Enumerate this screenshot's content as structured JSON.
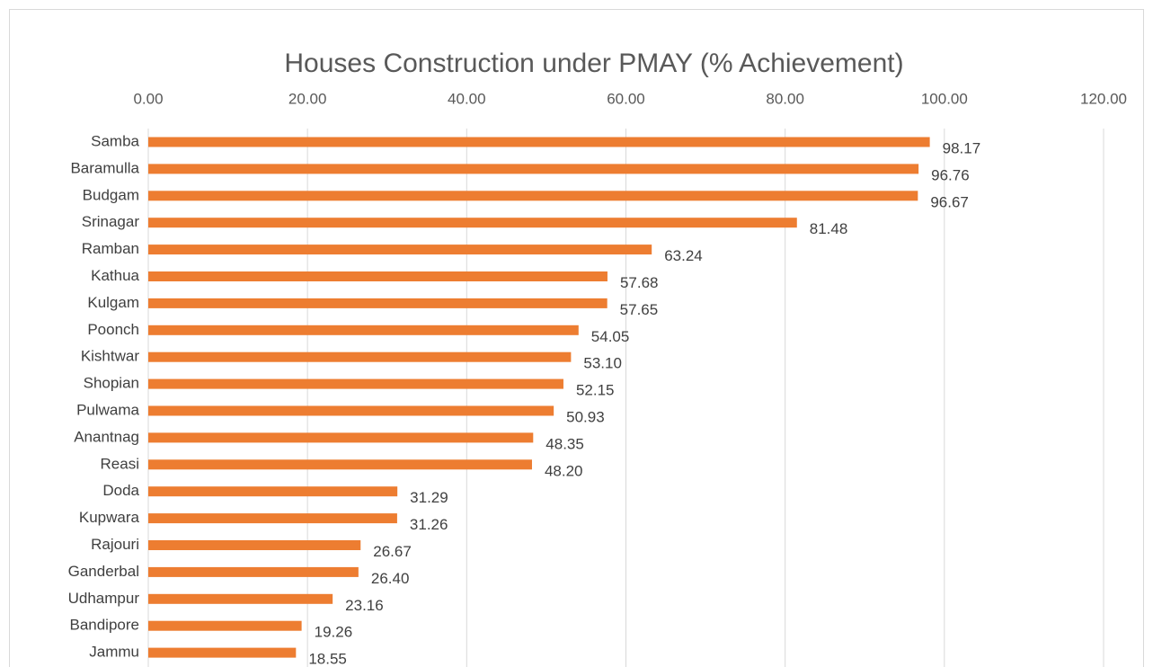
{
  "chart_data": {
    "type": "bar",
    "orientation": "horizontal",
    "title": "Houses Construction under PMAY (% Achievement)",
    "categories": [
      "Samba",
      "Baramulla",
      "Budgam",
      "Srinagar",
      "Ramban",
      "Kathua",
      "Kulgam",
      "Poonch",
      "Kishtwar",
      "Shopian",
      "Pulwama",
      "Anantnag",
      "Reasi",
      "Doda",
      "Kupwara",
      "Rajouri",
      "Ganderbal",
      "Udhampur",
      "Bandipore",
      "Jammu"
    ],
    "values": [
      98.17,
      96.76,
      96.67,
      81.48,
      63.24,
      57.68,
      57.65,
      54.05,
      53.1,
      52.15,
      50.93,
      48.35,
      48.2,
      31.29,
      31.26,
      26.67,
      26.4,
      23.16,
      19.26,
      18.55
    ],
    "value_labels": [
      "98.17",
      "96.76",
      "96.67",
      "81.48",
      "63.24",
      "57.68",
      "57.65",
      "54.05",
      "53.10",
      "52.15",
      "50.93",
      "48.35",
      "48.20",
      "31.29",
      "31.26",
      "26.67",
      "26.40",
      "23.16",
      "19.26",
      "18.55"
    ],
    "color": "#ed7d31",
    "xlim": [
      0,
      120
    ],
    "xticks": [
      {
        "value": 0,
        "label": "0.00"
      },
      {
        "value": 20,
        "label": "20.00"
      },
      {
        "value": 40,
        "label": "40.00"
      },
      {
        "value": 60,
        "label": "60.00"
      },
      {
        "value": 80,
        "label": "80.00"
      },
      {
        "value": 100,
        "label": "100.00"
      },
      {
        "value": 120,
        "label": "120.00"
      }
    ],
    "grid": true
  }
}
